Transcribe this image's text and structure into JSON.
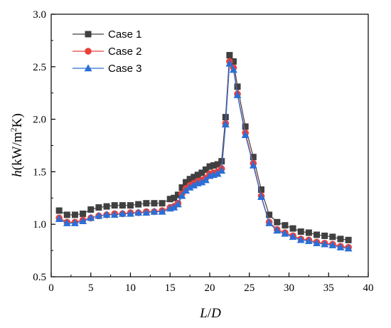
{
  "chart_data": {
    "type": "line",
    "title": "",
    "xlabel": {
      "var": "L",
      "slash": "/",
      "var2": "D"
    },
    "ylabel": {
      "var": "h",
      "open": "(kW/m",
      "sup": "2",
      "close": "K)"
    },
    "xlim": [
      0,
      40
    ],
    "ylim": [
      0.5,
      3.0
    ],
    "xticks": [
      "0",
      "5",
      "10",
      "15",
      "20",
      "25",
      "30",
      "35",
      "40"
    ],
    "yticks": [
      "0.5",
      "1.0",
      "1.5",
      "2.0",
      "2.5",
      "3.0"
    ],
    "grid": false,
    "legend_position": "top-left",
    "series": [
      {
        "name": "Case 1",
        "marker": "square",
        "color": "#404040",
        "points": [
          [
            1.0,
            1.13
          ],
          [
            2.0,
            1.09
          ],
          [
            3.0,
            1.09
          ],
          [
            4.0,
            1.1
          ],
          [
            5.0,
            1.14
          ],
          [
            6.0,
            1.16
          ],
          [
            7.0,
            1.17
          ],
          [
            8.0,
            1.18
          ],
          [
            9.0,
            1.18
          ],
          [
            10.0,
            1.18
          ],
          [
            11.0,
            1.19
          ],
          [
            12.0,
            1.2
          ],
          [
            13.0,
            1.2
          ],
          [
            14.0,
            1.2
          ],
          [
            15.0,
            1.24
          ],
          [
            15.5,
            1.25
          ],
          [
            16.0,
            1.28
          ],
          [
            16.5,
            1.35
          ],
          [
            17.0,
            1.4
          ],
          [
            17.5,
            1.43
          ],
          [
            18.0,
            1.45
          ],
          [
            18.5,
            1.47
          ],
          [
            19.0,
            1.49
          ],
          [
            19.5,
            1.52
          ],
          [
            20.0,
            1.55
          ],
          [
            20.5,
            1.56
          ],
          [
            21.0,
            1.57
          ],
          [
            21.5,
            1.6
          ],
          [
            22.0,
            2.02
          ],
          [
            22.5,
            2.61
          ],
          [
            23.0,
            2.55
          ],
          [
            23.5,
            2.31
          ],
          [
            24.5,
            1.93
          ],
          [
            25.5,
            1.64
          ],
          [
            26.5,
            1.33
          ],
          [
            27.5,
            1.09
          ],
          [
            28.5,
            1.02
          ],
          [
            29.5,
            0.99
          ],
          [
            30.5,
            0.96
          ],
          [
            31.5,
            0.93
          ],
          [
            32.5,
            0.92
          ],
          [
            33.5,
            0.9
          ],
          [
            34.5,
            0.89
          ],
          [
            35.5,
            0.88
          ],
          [
            36.5,
            0.86
          ],
          [
            37.5,
            0.85
          ]
        ]
      },
      {
        "name": "Case 2",
        "marker": "circle",
        "color": "#e8403c",
        "points": [
          [
            1.0,
            1.06
          ],
          [
            2.0,
            1.02
          ],
          [
            3.0,
            1.02
          ],
          [
            4.0,
            1.04
          ],
          [
            5.0,
            1.06
          ],
          [
            6.0,
            1.08
          ],
          [
            7.0,
            1.09
          ],
          [
            8.0,
            1.1
          ],
          [
            9.0,
            1.1
          ],
          [
            10.0,
            1.11
          ],
          [
            11.0,
            1.11
          ],
          [
            12.0,
            1.12
          ],
          [
            13.0,
            1.12
          ],
          [
            14.0,
            1.13
          ],
          [
            15.0,
            1.16
          ],
          [
            15.5,
            1.17
          ],
          [
            16.0,
            1.2
          ],
          [
            16.5,
            1.29
          ],
          [
            17.0,
            1.34
          ],
          [
            17.5,
            1.37
          ],
          [
            18.0,
            1.39
          ],
          [
            18.5,
            1.41
          ],
          [
            19.0,
            1.42
          ],
          [
            19.5,
            1.44
          ],
          [
            20.0,
            1.48
          ],
          [
            20.5,
            1.49
          ],
          [
            21.0,
            1.5
          ],
          [
            21.5,
            1.53
          ],
          [
            22.0,
            1.96
          ],
          [
            22.5,
            2.55
          ],
          [
            23.0,
            2.49
          ],
          [
            23.5,
            2.24
          ],
          [
            24.5,
            1.87
          ],
          [
            25.5,
            1.58
          ],
          [
            26.5,
            1.27
          ],
          [
            27.5,
            1.02
          ],
          [
            28.5,
            0.95
          ],
          [
            29.5,
            0.92
          ],
          [
            30.5,
            0.89
          ],
          [
            31.5,
            0.86
          ],
          [
            32.5,
            0.85
          ],
          [
            33.5,
            0.83
          ],
          [
            34.5,
            0.82
          ],
          [
            35.5,
            0.81
          ],
          [
            36.5,
            0.79
          ],
          [
            37.5,
            0.78
          ]
        ]
      },
      {
        "name": "Case 3",
        "marker": "triangle",
        "color": "#2a6fd6",
        "points": [
          [
            1.0,
            1.05
          ],
          [
            2.0,
            1.01
          ],
          [
            3.0,
            1.01
          ],
          [
            4.0,
            1.03
          ],
          [
            5.0,
            1.06
          ],
          [
            6.0,
            1.08
          ],
          [
            7.0,
            1.09
          ],
          [
            8.0,
            1.09
          ],
          [
            9.0,
            1.1
          ],
          [
            10.0,
            1.1
          ],
          [
            11.0,
            1.11
          ],
          [
            12.0,
            1.11
          ],
          [
            13.0,
            1.12
          ],
          [
            14.0,
            1.12
          ],
          [
            15.0,
            1.15
          ],
          [
            15.5,
            1.16
          ],
          [
            16.0,
            1.19
          ],
          [
            16.5,
            1.27
          ],
          [
            17.0,
            1.32
          ],
          [
            17.5,
            1.35
          ],
          [
            18.0,
            1.37
          ],
          [
            18.5,
            1.39
          ],
          [
            19.0,
            1.4
          ],
          [
            19.5,
            1.42
          ],
          [
            20.0,
            1.46
          ],
          [
            20.5,
            1.47
          ],
          [
            21.0,
            1.48
          ],
          [
            21.5,
            1.51
          ],
          [
            22.0,
            1.95
          ],
          [
            22.5,
            2.53
          ],
          [
            23.0,
            2.47
          ],
          [
            23.5,
            2.23
          ],
          [
            24.5,
            1.85
          ],
          [
            25.5,
            1.56
          ],
          [
            26.5,
            1.26
          ],
          [
            27.5,
            1.01
          ],
          [
            28.5,
            0.94
          ],
          [
            29.5,
            0.91
          ],
          [
            30.5,
            0.88
          ],
          [
            31.5,
            0.85
          ],
          [
            32.5,
            0.84
          ],
          [
            33.5,
            0.82
          ],
          [
            34.5,
            0.81
          ],
          [
            35.5,
            0.8
          ],
          [
            36.5,
            0.78
          ],
          [
            37.5,
            0.77
          ]
        ]
      }
    ]
  }
}
